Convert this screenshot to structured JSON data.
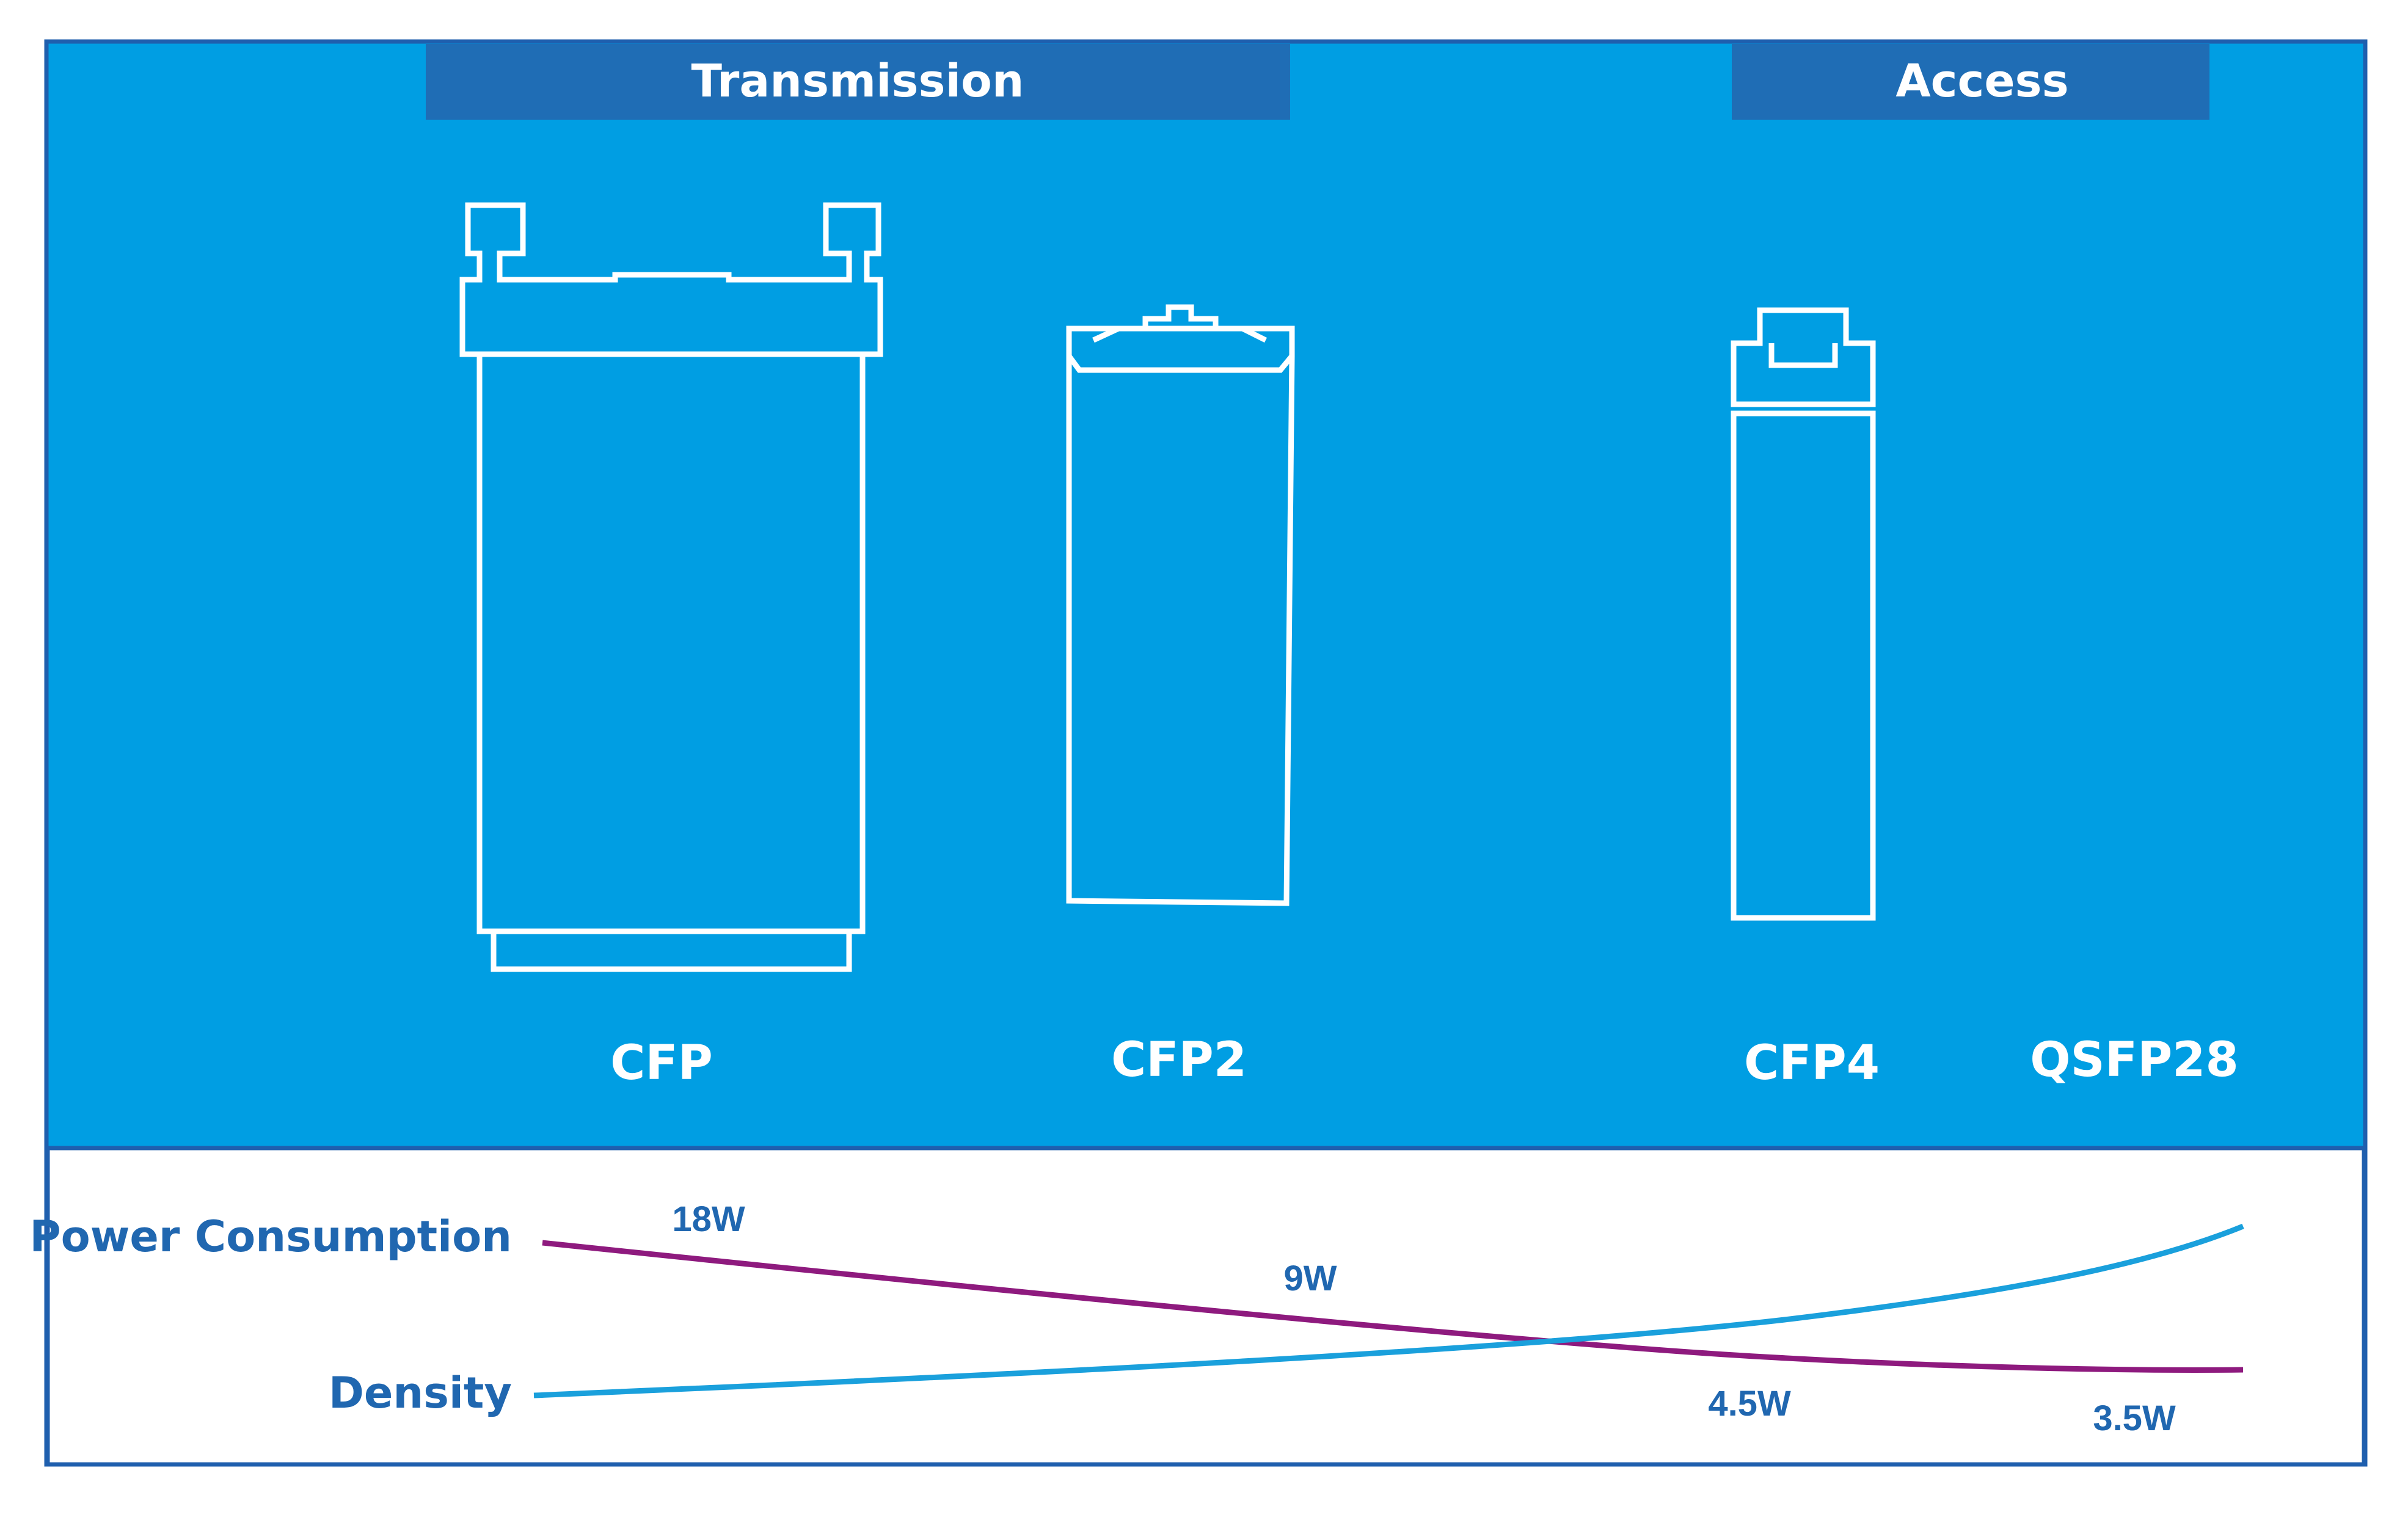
{
  "categories": {
    "transmission": "Transmission",
    "access": "Access"
  },
  "modules": [
    "CFP",
    "CFP2",
    "CFP4",
    "QSFP28"
  ],
  "rows": {
    "power": "Power Consumption",
    "density": "Density"
  },
  "power_values": [
    "18W",
    "9W",
    "4.5W",
    "3.5W"
  ],
  "colors": {
    "panel_blue": "#009ee3",
    "header_blue": "#1f6db5",
    "frame_blue": "#1f5fae",
    "text_blue": "#2067b0",
    "power_line": "#8e1a7e",
    "density_line": "#1aa0dc"
  },
  "icons": [
    "cfp-module-icon",
    "cfp2-module-icon",
    "cfp4-module-icon"
  ]
}
